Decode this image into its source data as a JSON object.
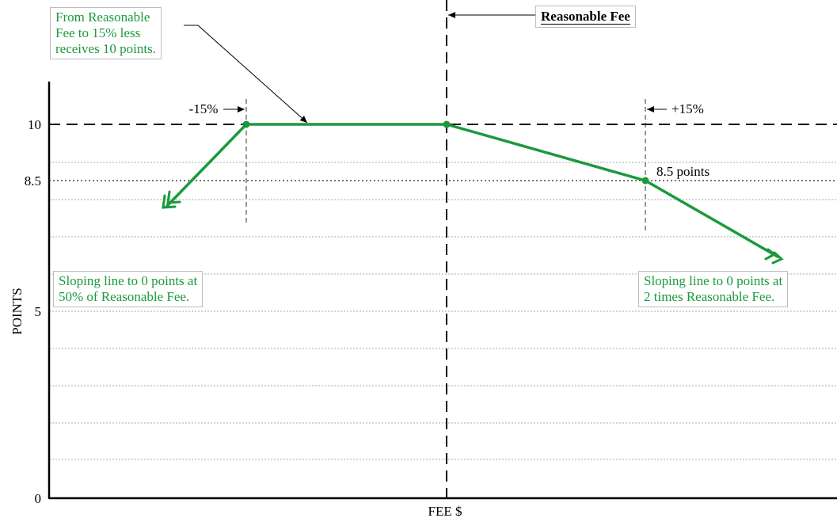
{
  "colors": {
    "line": "#1a9a3c",
    "axis": "#000000",
    "grid": "#aaaaaa"
  },
  "axes": {
    "y_label": "POINTS",
    "x_label": "FEE $",
    "y_ticks": [
      "10",
      "8.5",
      "5",
      "0"
    ]
  },
  "markers": {
    "reasonable_fee": "Reasonable Fee",
    "minus_15": "-15%",
    "plus_15": "+15%",
    "point_label": "8.5 points"
  },
  "callouts": {
    "top_left": [
      "From Reasonable",
      "Fee to 15% less",
      "receives 10 points."
    ],
    "left": [
      "Sloping line to 0 points at",
      "50% of Reasonable Fee."
    ],
    "right": [
      "Sloping line to 0 points at",
      "2 times Reasonable Fee."
    ]
  },
  "chart_data": {
    "type": "line",
    "xlabel": "FEE $",
    "ylabel": "POINTS",
    "ylim": [
      0,
      10
    ],
    "series": [
      {
        "points": [
          {
            "x": "-15%",
            "y": 10
          },
          {
            "x": "Reasonable Fee",
            "y": 10
          },
          {
            "x": "+15%",
            "y": 8.5
          }
        ]
      }
    ]
  }
}
